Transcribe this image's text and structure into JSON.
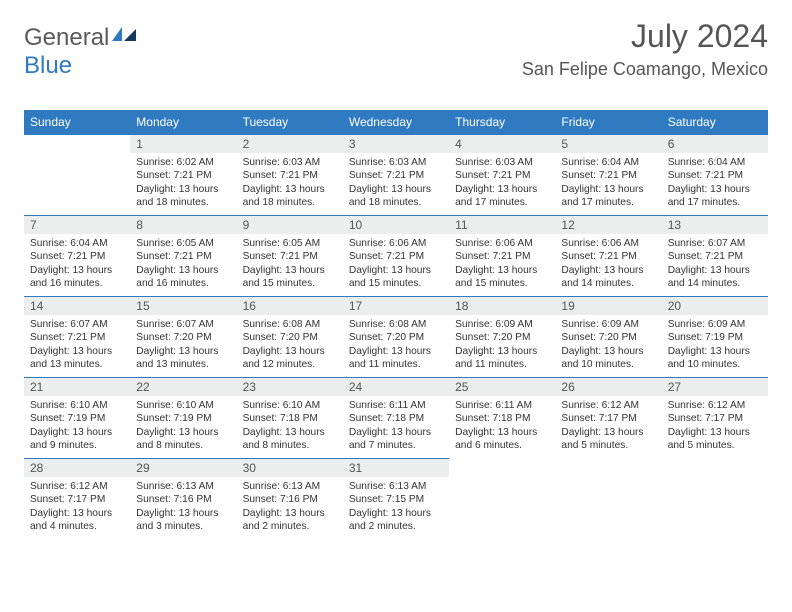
{
  "logo": {
    "part1": "General",
    "part2": "Blue"
  },
  "title": "July 2024",
  "location": "San Felipe Coamango, Mexico",
  "colors": {
    "header_bg": "#2f7ac0",
    "header_text": "#ffffff",
    "daynum_bg": "#eceded",
    "daynum_text": "#555555",
    "body_text": "#333333",
    "rule": "#2f7ac0",
    "title_text": "#555555",
    "logo_gray": "#5a5a5a",
    "logo_blue": "#2f7ac0"
  },
  "day_headers": [
    "Sunday",
    "Monday",
    "Tuesday",
    "Wednesday",
    "Thursday",
    "Friday",
    "Saturday"
  ],
  "weeks": [
    [
      {
        "n": "",
        "sunrise": "",
        "sunset": "",
        "daylight": ""
      },
      {
        "n": "1",
        "sunrise": "Sunrise: 6:02 AM",
        "sunset": "Sunset: 7:21 PM",
        "daylight": "Daylight: 13 hours and 18 minutes."
      },
      {
        "n": "2",
        "sunrise": "Sunrise: 6:03 AM",
        "sunset": "Sunset: 7:21 PM",
        "daylight": "Daylight: 13 hours and 18 minutes."
      },
      {
        "n": "3",
        "sunrise": "Sunrise: 6:03 AM",
        "sunset": "Sunset: 7:21 PM",
        "daylight": "Daylight: 13 hours and 18 minutes."
      },
      {
        "n": "4",
        "sunrise": "Sunrise: 6:03 AM",
        "sunset": "Sunset: 7:21 PM",
        "daylight": "Daylight: 13 hours and 17 minutes."
      },
      {
        "n": "5",
        "sunrise": "Sunrise: 6:04 AM",
        "sunset": "Sunset: 7:21 PM",
        "daylight": "Daylight: 13 hours and 17 minutes."
      },
      {
        "n": "6",
        "sunrise": "Sunrise: 6:04 AM",
        "sunset": "Sunset: 7:21 PM",
        "daylight": "Daylight: 13 hours and 17 minutes."
      }
    ],
    [
      {
        "n": "7",
        "sunrise": "Sunrise: 6:04 AM",
        "sunset": "Sunset: 7:21 PM",
        "daylight": "Daylight: 13 hours and 16 minutes."
      },
      {
        "n": "8",
        "sunrise": "Sunrise: 6:05 AM",
        "sunset": "Sunset: 7:21 PM",
        "daylight": "Daylight: 13 hours and 16 minutes."
      },
      {
        "n": "9",
        "sunrise": "Sunrise: 6:05 AM",
        "sunset": "Sunset: 7:21 PM",
        "daylight": "Daylight: 13 hours and 15 minutes."
      },
      {
        "n": "10",
        "sunrise": "Sunrise: 6:06 AM",
        "sunset": "Sunset: 7:21 PM",
        "daylight": "Daylight: 13 hours and 15 minutes."
      },
      {
        "n": "11",
        "sunrise": "Sunrise: 6:06 AM",
        "sunset": "Sunset: 7:21 PM",
        "daylight": "Daylight: 13 hours and 15 minutes."
      },
      {
        "n": "12",
        "sunrise": "Sunrise: 6:06 AM",
        "sunset": "Sunset: 7:21 PM",
        "daylight": "Daylight: 13 hours and 14 minutes."
      },
      {
        "n": "13",
        "sunrise": "Sunrise: 6:07 AM",
        "sunset": "Sunset: 7:21 PM",
        "daylight": "Daylight: 13 hours and 14 minutes."
      }
    ],
    [
      {
        "n": "14",
        "sunrise": "Sunrise: 6:07 AM",
        "sunset": "Sunset: 7:21 PM",
        "daylight": "Daylight: 13 hours and 13 minutes."
      },
      {
        "n": "15",
        "sunrise": "Sunrise: 6:07 AM",
        "sunset": "Sunset: 7:20 PM",
        "daylight": "Daylight: 13 hours and 13 minutes."
      },
      {
        "n": "16",
        "sunrise": "Sunrise: 6:08 AM",
        "sunset": "Sunset: 7:20 PM",
        "daylight": "Daylight: 13 hours and 12 minutes."
      },
      {
        "n": "17",
        "sunrise": "Sunrise: 6:08 AM",
        "sunset": "Sunset: 7:20 PM",
        "daylight": "Daylight: 13 hours and 11 minutes."
      },
      {
        "n": "18",
        "sunrise": "Sunrise: 6:09 AM",
        "sunset": "Sunset: 7:20 PM",
        "daylight": "Daylight: 13 hours and 11 minutes."
      },
      {
        "n": "19",
        "sunrise": "Sunrise: 6:09 AM",
        "sunset": "Sunset: 7:20 PM",
        "daylight": "Daylight: 13 hours and 10 minutes."
      },
      {
        "n": "20",
        "sunrise": "Sunrise: 6:09 AM",
        "sunset": "Sunset: 7:19 PM",
        "daylight": "Daylight: 13 hours and 10 minutes."
      }
    ],
    [
      {
        "n": "21",
        "sunrise": "Sunrise: 6:10 AM",
        "sunset": "Sunset: 7:19 PM",
        "daylight": "Daylight: 13 hours and 9 minutes."
      },
      {
        "n": "22",
        "sunrise": "Sunrise: 6:10 AM",
        "sunset": "Sunset: 7:19 PM",
        "daylight": "Daylight: 13 hours and 8 minutes."
      },
      {
        "n": "23",
        "sunrise": "Sunrise: 6:10 AM",
        "sunset": "Sunset: 7:18 PM",
        "daylight": "Daylight: 13 hours and 8 minutes."
      },
      {
        "n": "24",
        "sunrise": "Sunrise: 6:11 AM",
        "sunset": "Sunset: 7:18 PM",
        "daylight": "Daylight: 13 hours and 7 minutes."
      },
      {
        "n": "25",
        "sunrise": "Sunrise: 6:11 AM",
        "sunset": "Sunset: 7:18 PM",
        "daylight": "Daylight: 13 hours and 6 minutes."
      },
      {
        "n": "26",
        "sunrise": "Sunrise: 6:12 AM",
        "sunset": "Sunset: 7:17 PM",
        "daylight": "Daylight: 13 hours and 5 minutes."
      },
      {
        "n": "27",
        "sunrise": "Sunrise: 6:12 AM",
        "sunset": "Sunset: 7:17 PM",
        "daylight": "Daylight: 13 hours and 5 minutes."
      }
    ],
    [
      {
        "n": "28",
        "sunrise": "Sunrise: 6:12 AM",
        "sunset": "Sunset: 7:17 PM",
        "daylight": "Daylight: 13 hours and 4 minutes."
      },
      {
        "n": "29",
        "sunrise": "Sunrise: 6:13 AM",
        "sunset": "Sunset: 7:16 PM",
        "daylight": "Daylight: 13 hours and 3 minutes."
      },
      {
        "n": "30",
        "sunrise": "Sunrise: 6:13 AM",
        "sunset": "Sunset: 7:16 PM",
        "daylight": "Daylight: 13 hours and 2 minutes."
      },
      {
        "n": "31",
        "sunrise": "Sunrise: 6:13 AM",
        "sunset": "Sunset: 7:15 PM",
        "daylight": "Daylight: 13 hours and 2 minutes."
      },
      {
        "n": "",
        "sunrise": "",
        "sunset": "",
        "daylight": ""
      },
      {
        "n": "",
        "sunrise": "",
        "sunset": "",
        "daylight": ""
      },
      {
        "n": "",
        "sunrise": "",
        "sunset": "",
        "daylight": ""
      }
    ]
  ]
}
